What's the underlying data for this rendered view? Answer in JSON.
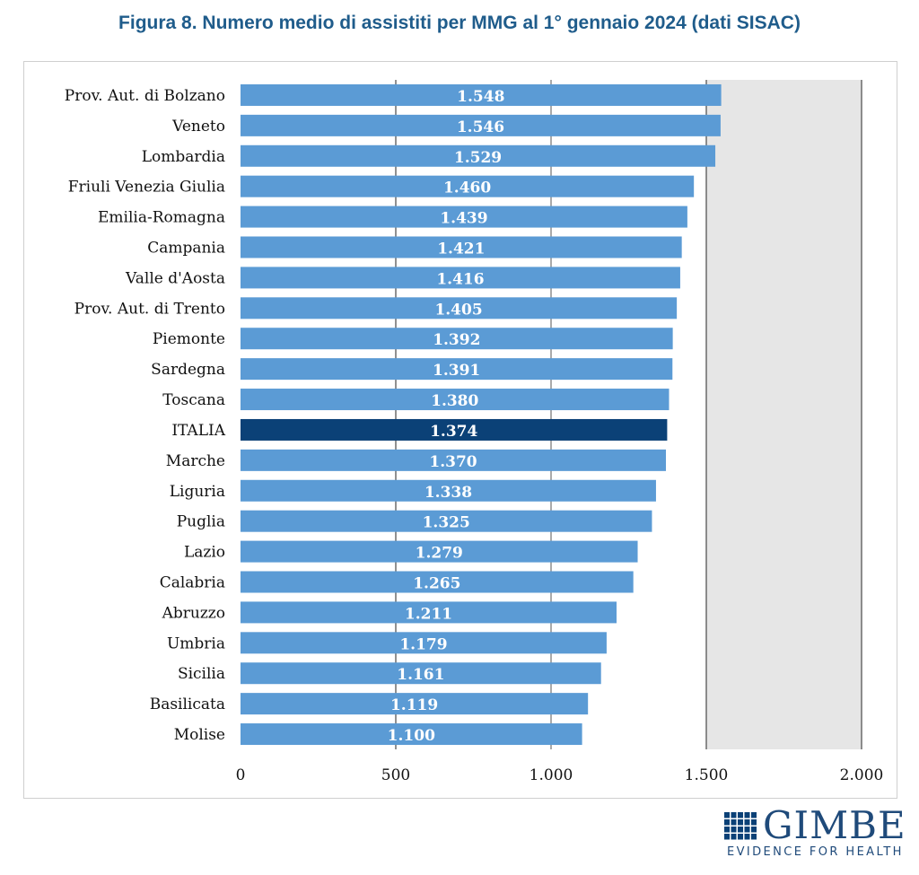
{
  "title": "Figura 8. Numero medio di assistiti per MMG al 1° gennaio 2024 (dati SISAC)",
  "colors": {
    "bar": "#5b9bd5",
    "highlight": "#0b4177",
    "shade": "#e6e6e6",
    "title": "#1f5c8b"
  },
  "chart_data": {
    "type": "bar",
    "orientation": "horizontal",
    "categories": [
      "Prov. Aut. di Bolzano",
      "Veneto",
      "Lombardia",
      "Friuli Venezia Giulia",
      "Emilia-Romagna",
      "Campania",
      "Valle d'Aosta",
      "Prov. Aut. di Trento",
      "Piemonte",
      "Sardegna",
      "Toscana",
      "ITALIA",
      "Marche",
      "Liguria",
      "Puglia",
      "Lazio",
      "Calabria",
      "Abruzzo",
      "Umbria",
      "Sicilia",
      "Basilicata",
      "Molise"
    ],
    "values": [
      1548,
      1546,
      1529,
      1460,
      1439,
      1421,
      1416,
      1405,
      1392,
      1391,
      1380,
      1374,
      1370,
      1338,
      1325,
      1279,
      1265,
      1211,
      1179,
      1161,
      1119,
      1100
    ],
    "value_labels": [
      "1.548",
      "1.546",
      "1.529",
      "1.460",
      "1.439",
      "1.421",
      "1.416",
      "1.405",
      "1.392",
      "1.391",
      "1.380",
      "1.374",
      "1.370",
      "1.338",
      "1.325",
      "1.279",
      "1.265",
      "1.211",
      "1.179",
      "1.161",
      "1.119",
      "1.100"
    ],
    "highlight": "ITALIA",
    "xlim": [
      0,
      2000
    ],
    "xticks": [
      0,
      500,
      1000,
      1500,
      2000
    ],
    "xtick_labels": [
      "0",
      "500",
      "1.000",
      "1.500",
      "2.000"
    ],
    "shaded_range": [
      1500,
      2000
    ],
    "gridlines": [
      500,
      1000,
      1500,
      2000
    ]
  },
  "logo": {
    "name": "GIMBE",
    "tagline": "EVIDENCE FOR HEALTH"
  }
}
